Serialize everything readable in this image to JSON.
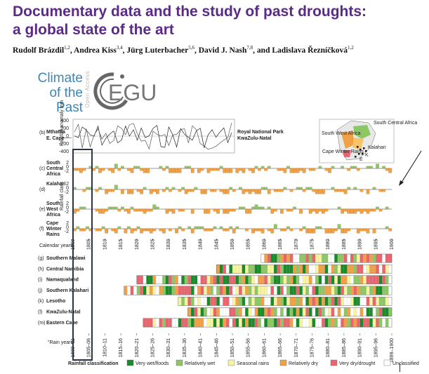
{
  "paper": {
    "title_line1": "Documentary data and the study of past droughts:",
    "title_line2": "a global state of the art",
    "authors": [
      {
        "name": "Rudolf Brázdil",
        "sup": "1,2",
        "sep": ", "
      },
      {
        "name": "Andrea Kiss",
        "sup": "3,4",
        "sep": ", "
      },
      {
        "name": "Jürg Luterbacher",
        "sup": "5,6",
        "sep": ", "
      },
      {
        "name": "David J. Nash",
        "sup": "7,8",
        "sep": ", and "
      },
      {
        "name": "Ladislava Řezníčková",
        "sup": "1,2",
        "sep": ""
      }
    ]
  },
  "journal": {
    "line1": "Climate",
    "line2": "of the Past",
    "open_access": "Open Access",
    "egu": "EGU"
  },
  "figure": {
    "panel_b": {
      "label": "(b)",
      "left_station_1": "Mthatha",
      "left_station_2": "E. Cape",
      "right_station_1": "Royal National Park",
      "right_station_2": "KwaZulu-Natal",
      "axis_label": "Rainfall anomaly mm",
      "ticks": [
        "400",
        "200",
        "0",
        "-200",
        "-400"
      ]
    },
    "panel_rows": [
      {
        "label": "(c)",
        "name_lines": [
          "South",
          "Central",
          "Africa"
        ]
      },
      {
        "label": "(d)",
        "name_lines": [
          "Kalahari"
        ]
      },
      {
        "label": "(e)",
        "name_lines": [
          "South",
          "West",
          "Africa"
        ]
      },
      {
        "label": "(f)",
        "name_lines": [
          "Cape",
          "Winter",
          "Rains"
        ]
      }
    ],
    "rainfall_class_label": "Rainfall class",
    "class_ticks": [
      "2",
      "0",
      "-2"
    ],
    "calendar_years_label": "Calendar years",
    "calendar_years": [
      "1800",
      "1805",
      "1810",
      "1815",
      "1820",
      "1825",
      "1830",
      "1835",
      "1840",
      "1845",
      "1850",
      "1855",
      "1860",
      "1865",
      "1870",
      "1875",
      "1880",
      "1885",
      "1890",
      "1895",
      "1900"
    ],
    "regions": [
      {
        "label": "(g)",
        "name": "Southern Malawi",
        "start": 1859
      },
      {
        "label": "(h)",
        "name": "Central Namibia",
        "start": 1845
      },
      {
        "label": "(i)",
        "name": "Namaqualand",
        "start": 1820
      },
      {
        "label": "(j)",
        "name": "Southern Kalahari",
        "start": 1816
      },
      {
        "label": "(k)",
        "name": "Lesotho",
        "start": 1833
      },
      {
        "label": "(l)",
        "name": "KwaZulu-Natal",
        "start": 1836
      },
      {
        "label": "(m)",
        "name": "Eastern Cape",
        "start": 1822
      }
    ],
    "rain_years_label": "\"Rain years\"",
    "rain_years": [
      "1800–01",
      "1805–06",
      "1810–11",
      "1815–16",
      "1820–21",
      "1825–26",
      "1830–31",
      "1835–36",
      "1840–41",
      "1845–46",
      "1850–51",
      "1855–56",
      "1860–61",
      "1865–66",
      "1870–71",
      "1875–76",
      "1880–81",
      "1885–86",
      "1890–91",
      "1895–96",
      "1899–1900"
    ],
    "map_labels": {
      "scas": "South Central Africa",
      "swa": "South West Africa",
      "kalahari": "Kalahari",
      "cwr": "Cape Winter Rains",
      "k": "K",
      "e": "E"
    },
    "legend": {
      "title": "Rainfall classification",
      "items": [
        {
          "label": "Very wet/floods",
          "color": "#1a8a2a"
        },
        {
          "label": "Relatively wet",
          "color": "#8cc665"
        },
        {
          "label": "Seasonal rains",
          "color": "#f7f3a0"
        },
        {
          "label": "Relatively dry",
          "color": "#f0a046"
        },
        {
          "label": "Very dry/drought",
          "color": "#e8646e"
        },
        {
          "label": "Unclassified",
          "color": "#ffffff"
        }
      ]
    }
  }
}
